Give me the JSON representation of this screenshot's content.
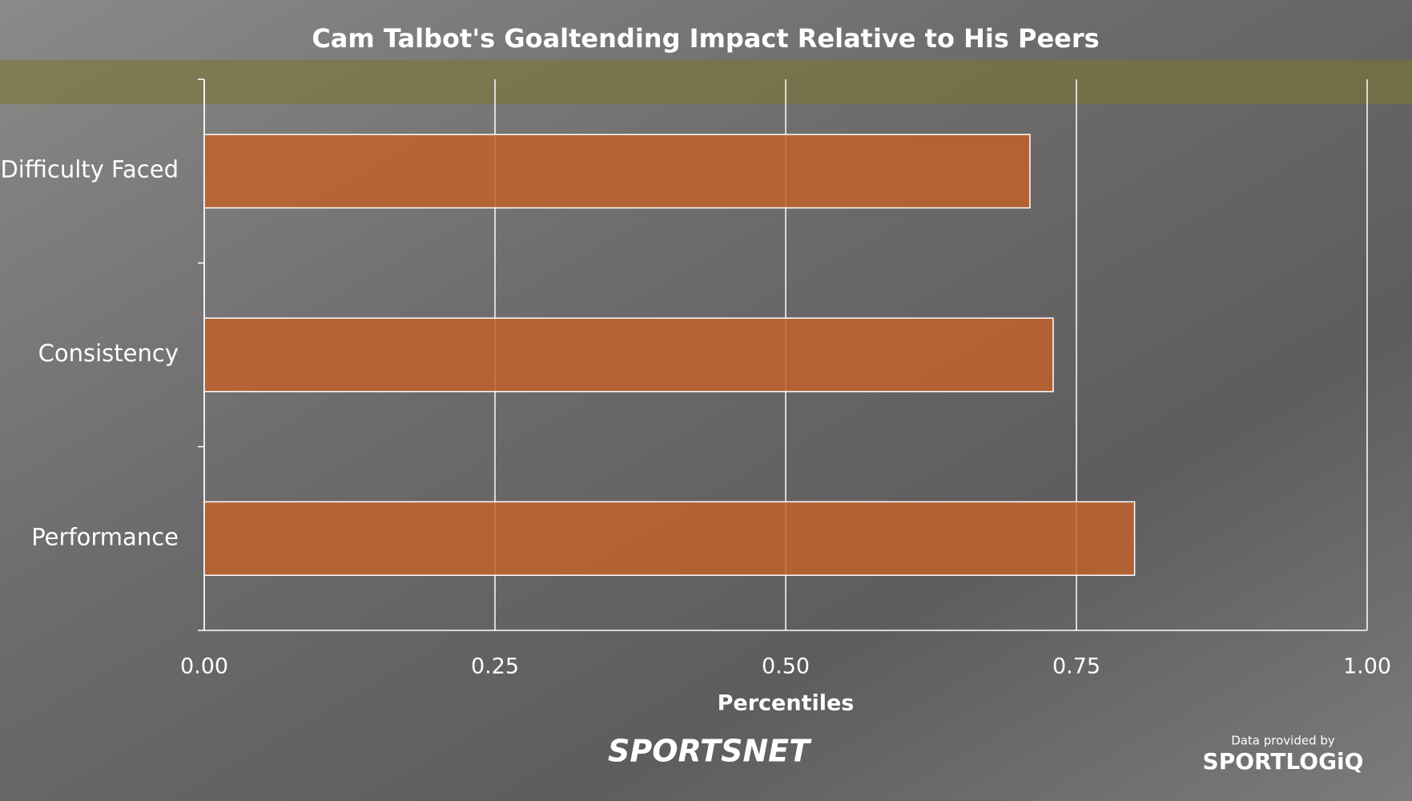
{
  "chart_data": {
    "type": "bar",
    "orientation": "horizontal",
    "title": "Cam Talbot's Goaltending Impact Relative to His Peers",
    "x_label": "Percentiles",
    "categories": [
      "Difficulty Faced",
      "Consistency",
      "Performance"
    ],
    "values": [
      0.71,
      0.73,
      0.8
    ],
    "color": "#c0622a",
    "xlim": [
      0,
      1
    ],
    "xticks": [
      {
        "value": 0,
        "label": "0.00"
      },
      {
        "value": 0.25,
        "label": "0.25"
      },
      {
        "value": 0.5,
        "label": "0.50"
      },
      {
        "value": 0.75,
        "label": "0.75"
      },
      {
        "value": 1,
        "label": "1.00"
      }
    ],
    "grid": true,
    "brand": "SPORTSNET",
    "credit": "Data provided by",
    "credit_brand": "SPORTLOGiQ"
  }
}
